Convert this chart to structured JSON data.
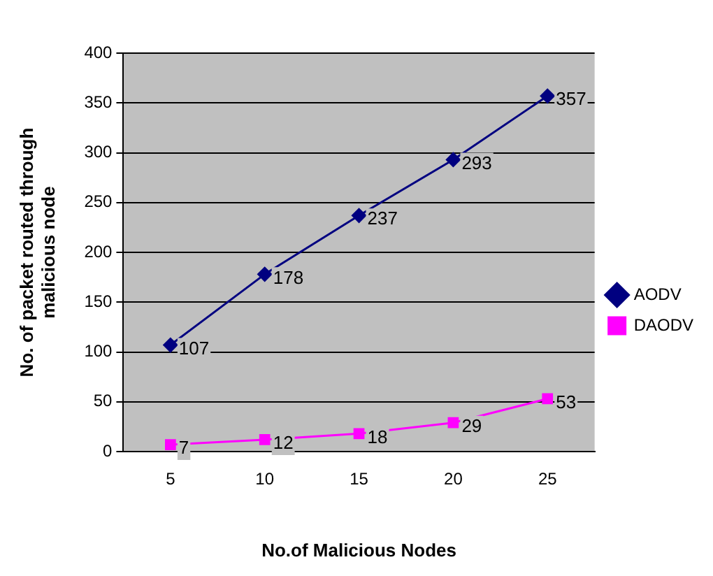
{
  "chart_data": {
    "type": "line",
    "xlabel": "No.of Malicious Nodes",
    "ylabel": "No. of packet routed through malicious node",
    "categories": [
      "5",
      "10",
      "15",
      "20",
      "25"
    ],
    "series": [
      {
        "name": "AODV",
        "color": "#000080",
        "marker": "diamond",
        "values": [
          107,
          178,
          237,
          293,
          357
        ]
      },
      {
        "name": "DAODV",
        "color": "#ff00ff",
        "marker": "square",
        "values": [
          7,
          12,
          18,
          29,
          53
        ]
      }
    ],
    "ylim": [
      0,
      400
    ],
    "yticks": [
      0,
      50,
      100,
      150,
      200,
      250,
      300,
      350,
      400
    ],
    "grid": "y",
    "legend": "right",
    "data_labels": true,
    "line_style": "solid"
  }
}
